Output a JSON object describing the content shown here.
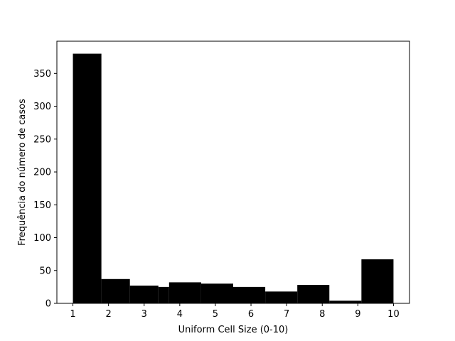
{
  "chart_data": {
    "type": "bar",
    "title": "",
    "xlabel": "Uniform Cell Size (0-10)",
    "ylabel": "Frequência do número de casos",
    "xlim": [
      0.55,
      10.45
    ],
    "ylim": [
      0,
      399
    ],
    "xticks": [
      1,
      2,
      3,
      4,
      5,
      6,
      7,
      8,
      9,
      10
    ],
    "yticks": [
      0,
      50,
      100,
      150,
      200,
      250,
      300,
      350
    ],
    "bar_color": "#000000",
    "bins": [
      {
        "x0": 1.0,
        "x1": 1.8,
        "value": 380
      },
      {
        "x0": 1.8,
        "x1": 2.6,
        "value": 37
      },
      {
        "x0": 2.6,
        "x1": 3.4,
        "value": 27
      },
      {
        "x0": 3.4,
        "x1": 3.7,
        "value": 25
      },
      {
        "x0": 3.7,
        "x1": 4.6,
        "value": 32
      },
      {
        "x0": 4.6,
        "x1": 5.5,
        "value": 30
      },
      {
        "x0": 5.5,
        "x1": 6.4,
        "value": 25
      },
      {
        "x0": 6.4,
        "x1": 7.3,
        "value": 18
      },
      {
        "x0": 7.3,
        "x1": 8.2,
        "value": 28
      },
      {
        "x0": 8.2,
        "x1": 9.1,
        "value": 4
      },
      {
        "x0": 9.1,
        "x1": 10.0,
        "value": 67
      }
    ],
    "grid": false,
    "legend": "none"
  }
}
